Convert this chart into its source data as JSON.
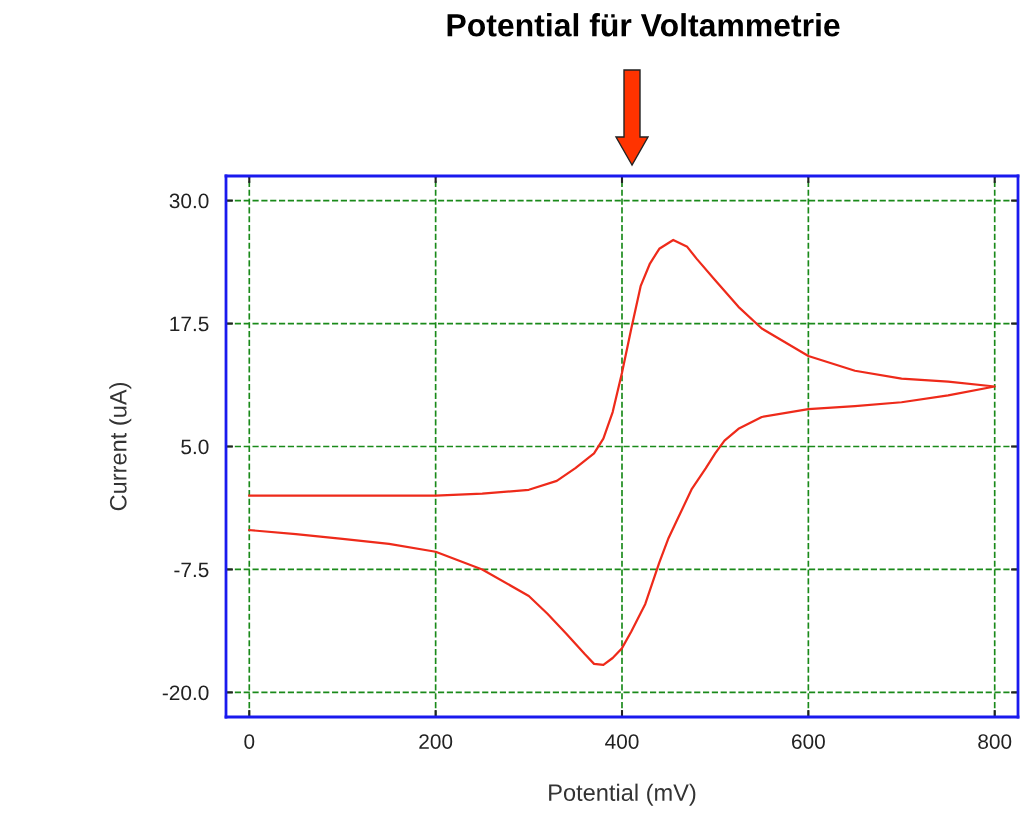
{
  "chart_data": {
    "type": "line",
    "title": "Potential für Voltammetrie",
    "xlabel": "Potential (mV)",
    "ylabel": "Current (uA)",
    "xlim": [
      -25,
      825
    ],
    "ylim": [
      -22.5,
      32.5
    ],
    "xticks": [
      0,
      200,
      400,
      600,
      800
    ],
    "yticks": [
      {
        "value": 30,
        "label": "30.0"
      },
      {
        "value": 17.5,
        "label": "17.5"
      },
      {
        "value": 5,
        "label": "5.0"
      },
      {
        "value": -7.5,
        "label": "-7.5"
      },
      {
        "value": -20,
        "label": "-20.0"
      }
    ],
    "grid": true,
    "marker": "none",
    "line_style": "solid",
    "series": [
      {
        "color": "#ee2a1a",
        "x": [
          0,
          100,
          200,
          250,
          300,
          330,
          350,
          370,
          380,
          390,
          400,
          410,
          420,
          430,
          440,
          455,
          470,
          480,
          500,
          525,
          550,
          600,
          650,
          700,
          750,
          800,
          750,
          700,
          650,
          600,
          550,
          525,
          510,
          500,
          490,
          475,
          460,
          450,
          440,
          425,
          410,
          400,
          390,
          380,
          370,
          360,
          340,
          320,
          300,
          250,
          200,
          150,
          100,
          50,
          0
        ],
        "values": [
          0.0,
          0.0,
          0.0,
          0.2,
          0.6,
          1.5,
          2.8,
          4.3,
          5.8,
          8.5,
          12.5,
          17.0,
          21.3,
          23.6,
          25.1,
          26.0,
          25.3,
          24.1,
          21.9,
          19.2,
          17.0,
          14.2,
          12.7,
          11.9,
          11.6,
          11.1,
          10.2,
          9.5,
          9.1,
          8.8,
          8.0,
          6.8,
          5.6,
          4.3,
          2.8,
          0.7,
          -2.3,
          -4.3,
          -6.8,
          -11.0,
          -13.8,
          -15.5,
          -16.5,
          -17.2,
          -17.1,
          -16.1,
          -14.0,
          -12.0,
          -10.2,
          -7.5,
          -5.7,
          -4.9,
          -4.4,
          -3.9,
          -3.5
        ]
      }
    ]
  }
}
